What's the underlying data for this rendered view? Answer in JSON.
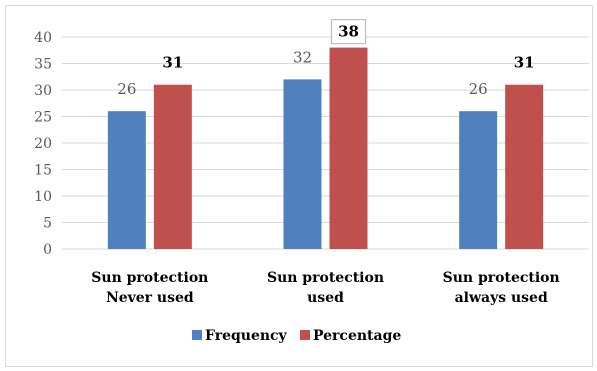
{
  "chart_data": {
    "type": "bar",
    "categories": [
      [
        "Sun protection",
        "Never used"
      ],
      [
        "Sun protection",
        "used"
      ],
      [
        "Sun protection",
        "always used"
      ]
    ],
    "series": [
      {
        "name": "Frequency",
        "values": [
          26,
          32,
          26
        ],
        "color": "#4e81bd"
      },
      {
        "name": "Percentage",
        "values": [
          31,
          38,
          31
        ],
        "color": "#c0504d"
      }
    ],
    "ylim": [
      0,
      40
    ],
    "yticks": [
      0,
      5,
      10,
      15,
      20,
      25,
      30,
      35,
      40
    ],
    "grid": true,
    "legend": "bottom",
    "boxed_label": {
      "series": 1,
      "index": 1
    }
  }
}
